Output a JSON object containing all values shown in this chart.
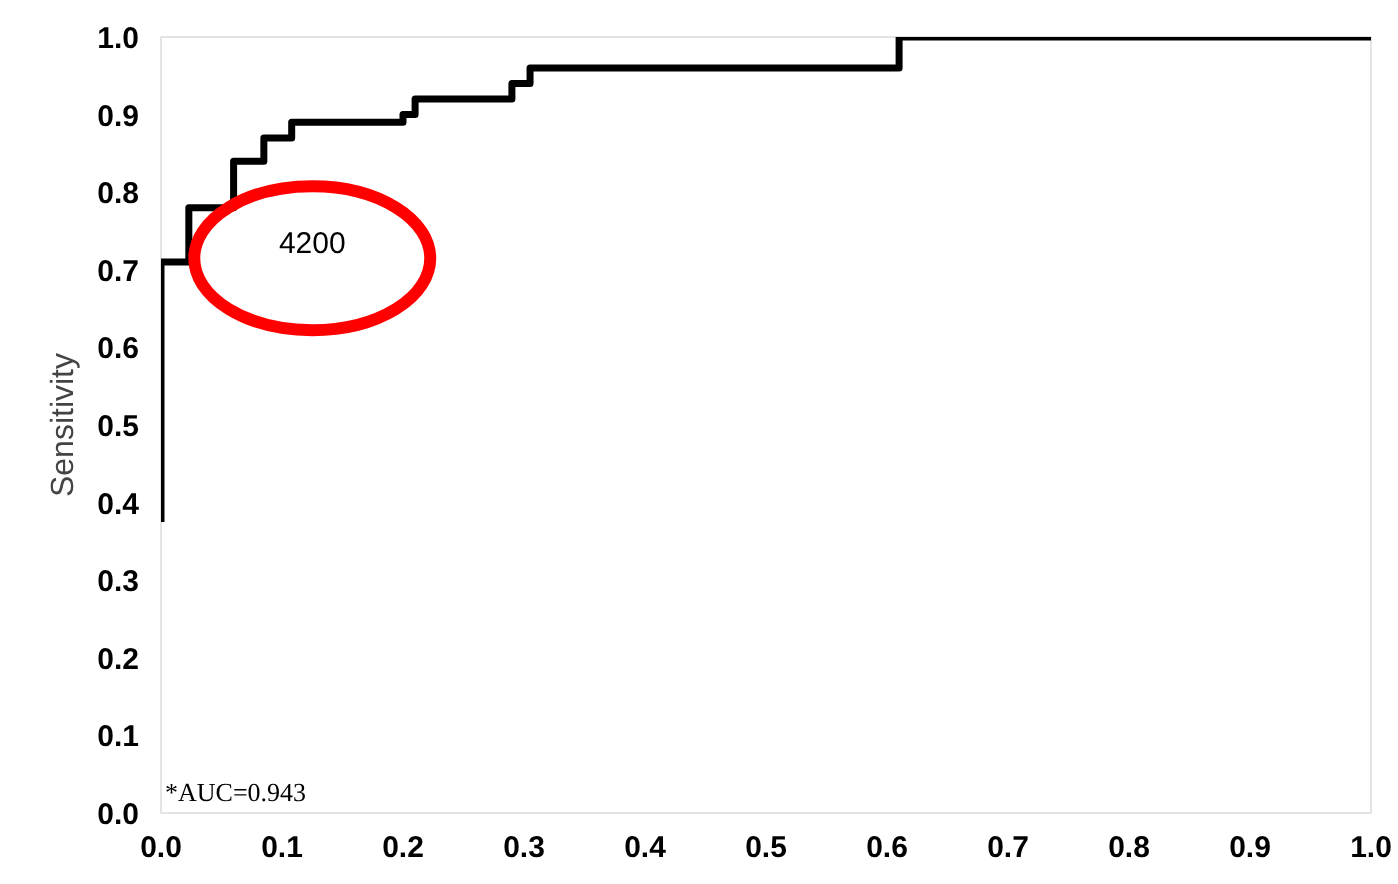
{
  "chart_data": {
    "type": "step",
    "ylabel": "Sensitivity",
    "x": [
      0,
      0,
      0.023,
      0.06,
      0.085,
      0.108,
      0.2,
      0.21,
      0.29,
      0.305,
      0.61,
      1.0
    ],
    "series": [
      {
        "color": "#000000",
        "values": [
          0.375,
          0.71,
          0.78,
          0.84,
          0.87,
          0.89,
          0.9,
          0.92,
          0.94,
          0.96,
          1.0,
          1.0
        ]
      }
    ],
    "xlim": [
      0,
      1.0
    ],
    "ylim": [
      0,
      1.0
    ],
    "xticks": [
      {
        "value": 0,
        "label": "0.0"
      },
      0.1,
      0.2,
      0.3,
      0.4,
      0.5,
      0.6,
      0.7,
      0.8,
      0.9,
      {
        "value": 1,
        "label": "1.0"
      }
    ],
    "yticks": [
      {
        "value": 0,
        "label": "0.0"
      },
      0.1,
      0.2,
      0.3,
      0.4,
      0.5,
      0.6,
      0.7,
      0.8,
      0.9,
      {
        "value": 1,
        "label": "1.0"
      }
    ],
    "grid": false,
    "annotations": [
      "4200",
      "*AUC=0.943"
    ]
  }
}
